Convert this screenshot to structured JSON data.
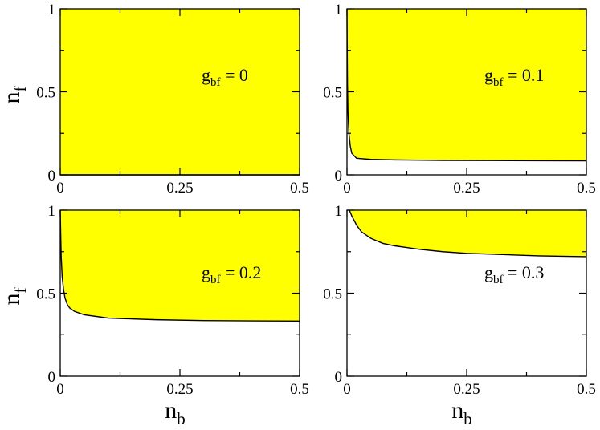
{
  "chart_data": [
    {
      "type": "area",
      "panel": "top-left",
      "xlim": [
        0,
        0.5
      ],
      "ylim": [
        0,
        1
      ],
      "xticks": [
        "0",
        "0.25",
        "0.5"
      ],
      "yticks": [
        "0",
        "0.5",
        "1"
      ],
      "ylabel": {
        "main": "n",
        "sub": "f"
      },
      "xlabel": {
        "main": "",
        "sub": ""
      },
      "annotation": {
        "main": "g",
        "sub": "bf",
        "value": " = 0"
      },
      "fill_color": "#ffff00",
      "boundary": {
        "x": [
          0,
          0.5
        ],
        "y": [
          0,
          0
        ]
      }
    },
    {
      "type": "area",
      "panel": "top-right",
      "xlim": [
        0,
        0.5
      ],
      "ylim": [
        0,
        1
      ],
      "xticks": [
        "0",
        "0.25",
        "0.5"
      ],
      "yticks": [
        "0",
        "0.5",
        "1"
      ],
      "ylabel": {
        "main": "",
        "sub": ""
      },
      "xlabel": {
        "main": "",
        "sub": ""
      },
      "annotation": {
        "main": "g",
        "sub": "bf",
        "value": " = 0.1"
      },
      "fill_color": "#ffff00",
      "boundary": {
        "x": [
          0,
          0.0005,
          0.001,
          0.002,
          0.004,
          0.007,
          0.01,
          0.02,
          0.05,
          0.1,
          0.2,
          0.3,
          0.4,
          0.5
        ],
        "y": [
          1.0,
          0.75,
          0.55,
          0.38,
          0.25,
          0.17,
          0.13,
          0.1,
          0.093,
          0.09,
          0.087,
          0.086,
          0.085,
          0.084
        ]
      }
    },
    {
      "type": "area",
      "panel": "bottom-left",
      "xlim": [
        0,
        0.5
      ],
      "ylim": [
        0,
        1
      ],
      "xticks": [
        "0",
        "0.25",
        "0.5"
      ],
      "yticks": [
        "0",
        "0.5",
        "1"
      ],
      "ylabel": {
        "main": "n",
        "sub": "f"
      },
      "xlabel": {
        "main": "n",
        "sub": "b"
      },
      "annotation": {
        "main": "g",
        "sub": "bf",
        "value": " = 0.2"
      },
      "fill_color": "#ffff00",
      "boundary": {
        "x": [
          0,
          0.001,
          0.002,
          0.004,
          0.007,
          0.01,
          0.015,
          0.02,
          0.03,
          0.05,
          0.1,
          0.2,
          0.3,
          0.4,
          0.5
        ],
        "y": [
          1.0,
          0.85,
          0.72,
          0.6,
          0.52,
          0.47,
          0.43,
          0.41,
          0.39,
          0.37,
          0.35,
          0.34,
          0.335,
          0.333,
          0.332
        ]
      }
    },
    {
      "type": "area",
      "panel": "bottom-right",
      "xlim": [
        0,
        0.5
      ],
      "ylim": [
        0,
        1
      ],
      "xticks": [
        "0",
        "0.25",
        "0.5"
      ],
      "yticks": [
        "0",
        "0.5",
        "1"
      ],
      "ylabel": {
        "main": "",
        "sub": ""
      },
      "xlabel": {
        "main": "n",
        "sub": "b"
      },
      "annotation": {
        "main": "g",
        "sub": "bf",
        "value": " = 0.3"
      },
      "fill_color": "#ffff00",
      "boundary": {
        "x": [
          0.005,
          0.01,
          0.02,
          0.03,
          0.05,
          0.075,
          0.1,
          0.15,
          0.2,
          0.25,
          0.3,
          0.4,
          0.5
        ],
        "y": [
          1.0,
          0.965,
          0.91,
          0.87,
          0.83,
          0.8,
          0.785,
          0.765,
          0.75,
          0.74,
          0.735,
          0.725,
          0.72
        ]
      }
    }
  ]
}
